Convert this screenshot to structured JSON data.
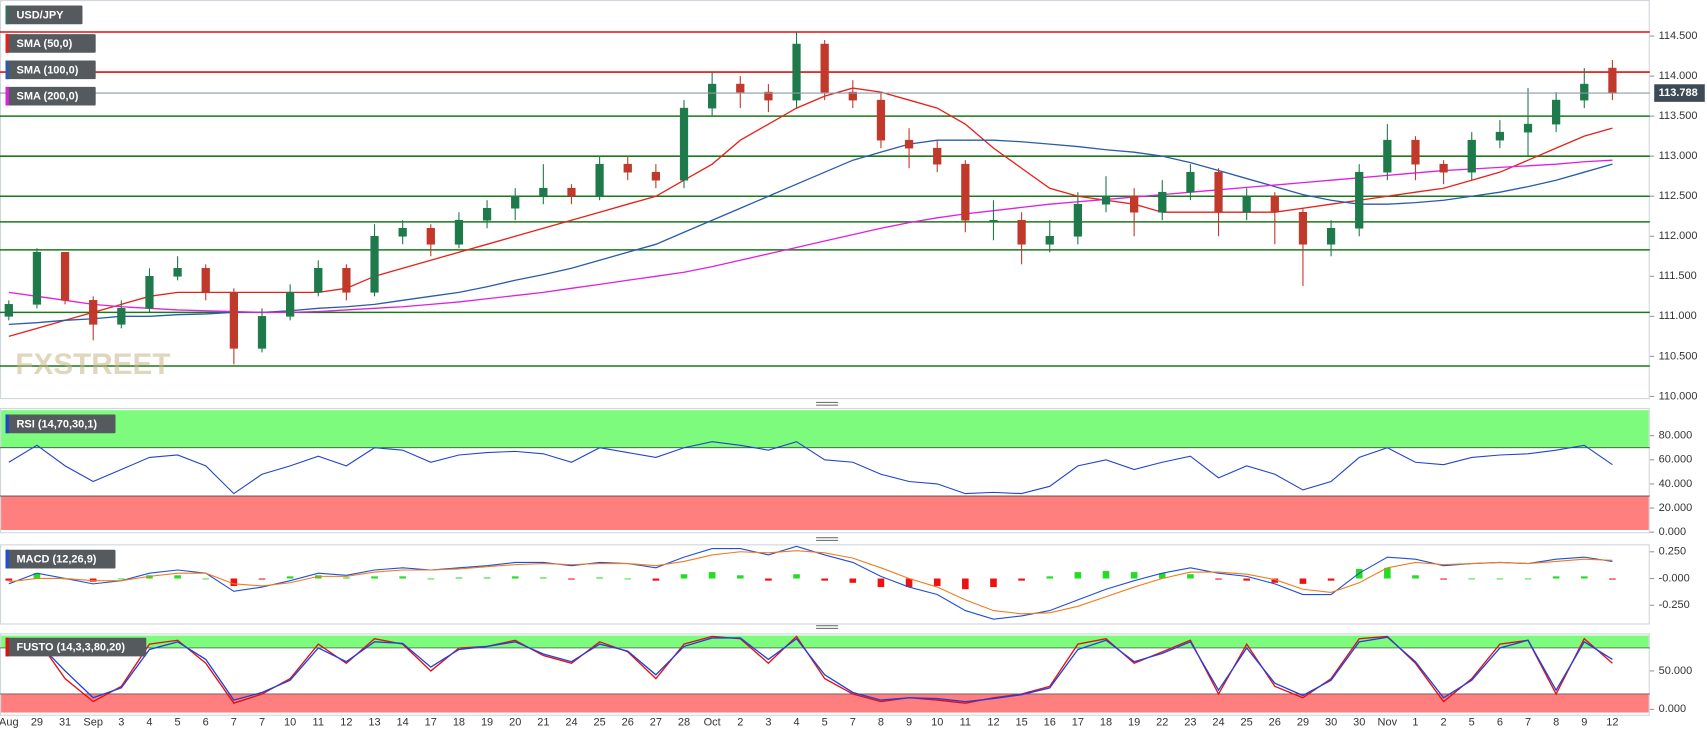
{
  "chart_data": [
    {
      "type": "candlestick",
      "categories": [
        "Aug",
        "29",
        "31",
        "Sep",
        "3",
        "4",
        "5",
        "6",
        "7",
        "7",
        "10",
        "11",
        "12",
        "13",
        "14",
        "17",
        "18",
        "19",
        "20",
        "21",
        "24",
        "25",
        "26",
        "27",
        "28",
        "Oct",
        "2",
        "3",
        "4",
        "5",
        "7",
        "8",
        "9",
        "10",
        "11",
        "12",
        "15",
        "16",
        "17",
        "18",
        "19",
        "22",
        "23",
        "24",
        "25",
        "26",
        "29",
        "30",
        "30",
        "Nov",
        "1",
        "2",
        "5",
        "6",
        "7",
        "8",
        "9",
        "12"
      ],
      "ohlc": {
        "name": "USD/JPY",
        "color": "#3a6b5a",
        "up_color": "#1e7a4a",
        "down_color": "#c0392b",
        "open": [
          111.0,
          111.15,
          111.8,
          111.2,
          110.9,
          111.1,
          111.5,
          111.6,
          111.3,
          110.6,
          111.0,
          111.3,
          111.6,
          111.3,
          112.0,
          112.1,
          111.9,
          112.2,
          112.35,
          112.5,
          112.6,
          112.5,
          112.9,
          112.8,
          112.7,
          113.6,
          113.9,
          113.8,
          113.7,
          114.4,
          113.8,
          113.7,
          113.2,
          113.1,
          112.9,
          112.2,
          112.2,
          111.9,
          112.0,
          112.4,
          112.5,
          112.3,
          112.55,
          112.8,
          112.3,
          112.5,
          112.3,
          111.9,
          112.1,
          112.8,
          113.2,
          112.9,
          112.8,
          113.2,
          113.3,
          113.4,
          113.7,
          114.1
        ],
        "high": [
          111.2,
          111.85,
          111.8,
          111.25,
          111.2,
          111.6,
          111.75,
          111.65,
          111.35,
          111.1,
          111.4,
          111.7,
          111.65,
          112.15,
          112.2,
          112.15,
          112.3,
          112.45,
          112.6,
          112.9,
          112.65,
          113.0,
          113.0,
          112.9,
          113.7,
          114.05,
          114.0,
          113.9,
          114.55,
          114.45,
          113.95,
          113.8,
          113.35,
          113.2,
          112.95,
          112.45,
          112.3,
          112.2,
          112.55,
          112.75,
          112.6,
          112.7,
          112.9,
          112.85,
          112.6,
          112.55,
          112.35,
          112.2,
          112.9,
          113.4,
          113.25,
          112.95,
          113.3,
          113.45,
          113.85,
          113.8,
          114.1,
          114.2
        ],
        "low": [
          110.95,
          111.1,
          111.15,
          110.7,
          110.85,
          111.05,
          111.45,
          111.2,
          110.4,
          110.55,
          110.95,
          111.25,
          111.2,
          111.25,
          111.9,
          111.75,
          111.85,
          112.1,
          112.2,
          112.4,
          112.4,
          112.45,
          112.7,
          112.6,
          112.6,
          113.5,
          113.6,
          113.55,
          113.6,
          113.7,
          113.6,
          113.1,
          112.85,
          112.8,
          112.05,
          111.95,
          111.65,
          111.8,
          111.9,
          112.3,
          112.0,
          112.2,
          112.45,
          112.0,
          112.2,
          111.9,
          111.38,
          111.75,
          112.0,
          112.7,
          112.7,
          112.65,
          112.7,
          113.1,
          113.0,
          113.3,
          113.6,
          113.7
        ],
        "close": [
          111.15,
          111.8,
          111.2,
          110.9,
          111.1,
          111.5,
          111.6,
          111.3,
          110.6,
          111.0,
          111.3,
          111.6,
          111.3,
          112.0,
          112.1,
          111.9,
          112.2,
          112.35,
          112.5,
          112.6,
          112.5,
          112.9,
          112.8,
          112.7,
          113.6,
          113.9,
          113.8,
          113.7,
          114.4,
          113.8,
          113.7,
          113.2,
          113.1,
          112.9,
          112.2,
          112.2,
          111.9,
          112.0,
          112.4,
          112.5,
          112.3,
          112.55,
          112.8,
          112.3,
          112.5,
          112.3,
          111.9,
          112.1,
          112.8,
          113.2,
          112.9,
          112.8,
          113.2,
          113.3,
          113.4,
          113.7,
          113.9,
          113.79
        ]
      },
      "series": [
        {
          "name": "SMA (50,0)",
          "color": "#e8201a",
          "values": [
            110.75,
            110.85,
            110.95,
            111.05,
            111.15,
            111.25,
            111.3,
            111.3,
            111.3,
            111.3,
            111.3,
            111.3,
            111.35,
            111.5,
            111.6,
            111.7,
            111.8,
            111.9,
            112.0,
            112.1,
            112.2,
            112.3,
            112.4,
            112.5,
            112.7,
            112.9,
            113.2,
            113.4,
            113.6,
            113.75,
            113.85,
            113.8,
            113.7,
            113.6,
            113.4,
            113.1,
            112.85,
            112.6,
            112.5,
            112.45,
            112.4,
            112.3,
            112.3,
            112.3,
            112.3,
            112.3,
            112.35,
            112.4,
            112.45,
            112.5,
            112.55,
            112.6,
            112.7,
            112.8,
            112.95,
            113.1,
            113.25,
            113.35
          ]
        },
        {
          "name": "SMA (100,0)",
          "color": "#2a5caa",
          "values": [
            110.9,
            110.92,
            110.95,
            110.97,
            111.0,
            111.0,
            111.02,
            111.03,
            111.05,
            111.05,
            111.07,
            111.1,
            111.12,
            111.15,
            111.2,
            111.25,
            111.3,
            111.37,
            111.45,
            111.52,
            111.6,
            111.7,
            111.8,
            111.9,
            112.05,
            112.2,
            112.35,
            112.5,
            112.65,
            112.8,
            112.95,
            113.05,
            113.15,
            113.2,
            113.2,
            113.2,
            113.18,
            113.15,
            113.12,
            113.08,
            113.05,
            113.0,
            112.92,
            112.82,
            112.72,
            112.62,
            112.52,
            112.45,
            112.4,
            112.4,
            112.42,
            112.45,
            112.5,
            112.55,
            112.62,
            112.7,
            112.8,
            112.9
          ]
        },
        {
          "name": "SMA (200,0)",
          "color": "#e020e0",
          "values": [
            111.3,
            111.25,
            111.2,
            111.15,
            111.12,
            111.1,
            111.08,
            111.07,
            111.06,
            111.05,
            111.05,
            111.06,
            111.08,
            111.1,
            111.12,
            111.15,
            111.18,
            111.22,
            111.26,
            111.3,
            111.35,
            111.4,
            111.45,
            111.5,
            111.55,
            111.62,
            111.7,
            111.78,
            111.86,
            111.94,
            112.02,
            112.1,
            112.17,
            112.23,
            112.28,
            112.32,
            112.36,
            112.4,
            112.43,
            112.46,
            112.49,
            112.52,
            112.55,
            112.58,
            112.61,
            112.64,
            112.67,
            112.7,
            112.73,
            112.76,
            112.79,
            112.82,
            112.84,
            112.86,
            112.88,
            112.9,
            112.93,
            112.95
          ]
        }
      ],
      "levels": [
        {
          "value": 114.55,
          "color": "#e01010"
        },
        {
          "value": 114.05,
          "color": "#e01010"
        },
        {
          "value": 113.5,
          "color": "#1a7a1a"
        },
        {
          "value": 113.0,
          "color": "#1a7a1a"
        },
        {
          "value": 112.5,
          "color": "#1a7a1a"
        },
        {
          "value": 112.18,
          "color": "#1a7a1a"
        },
        {
          "value": 111.83,
          "color": "#1a7a1a"
        },
        {
          "value": 111.05,
          "color": "#1a7a1a"
        },
        {
          "value": 110.38,
          "color": "#1a7a1a"
        }
      ],
      "last_price": 113.788,
      "watermark": "FXSTREET",
      "ylim": [
        109.98,
        114.95
      ],
      "yticks": [
        {
          "value": 110,
          "label": "110.000"
        },
        {
          "value": 110.5,
          "label": "110.500"
        },
        {
          "value": 111,
          "label": "111.000"
        },
        {
          "value": 111.5,
          "label": "111.500"
        },
        {
          "value": 112,
          "label": "112.000"
        },
        {
          "value": 112.5,
          "label": "112.500"
        },
        {
          "value": 113,
          "label": "113.000"
        },
        {
          "value": 113.5,
          "label": "113.500"
        },
        {
          "value": 114,
          "label": "114.000"
        },
        {
          "value": 114.5,
          "label": "114.500"
        }
      ]
    },
    {
      "type": "rsi",
      "title": "RSI (14,70,30,1)",
      "series": [
        {
          "color": "#2244cc",
          "values": [
            58,
            72,
            55,
            42,
            52,
            62,
            64,
            55,
            32,
            48,
            55,
            63,
            55,
            70,
            68,
            58,
            64,
            66,
            67,
            65,
            58,
            70,
            66,
            62,
            70,
            75,
            72,
            68,
            75,
            60,
            58,
            48,
            42,
            40,
            32,
            33,
            32,
            38,
            55,
            60,
            52,
            58,
            63,
            45,
            55,
            48,
            35,
            42,
            62,
            70,
            58,
            56,
            62,
            64,
            65,
            68,
            72,
            56
          ]
        }
      ],
      "upper_band": 70,
      "lower_band": 30,
      "upper_color": "#7dfb7d",
      "lower_color": "#ff7f7f",
      "ylim": [
        0,
        103
      ],
      "yticks": [
        {
          "value": 0,
          "label": "0.000"
        },
        {
          "value": 20,
          "label": "20.000"
        },
        {
          "value": 40,
          "label": "40.000"
        },
        {
          "value": 60,
          "label": "60.000"
        },
        {
          "value": 80,
          "label": "80.000"
        }
      ]
    },
    {
      "type": "macd",
      "title": "MACD (12,26,9)",
      "series": [
        {
          "color": "#1f4fd8",
          "values": [
            -0.05,
            0.05,
            0.0,
            -0.05,
            -0.02,
            0.05,
            0.08,
            0.05,
            -0.12,
            -0.08,
            -0.02,
            0.05,
            0.03,
            0.08,
            0.1,
            0.08,
            0.1,
            0.12,
            0.15,
            0.15,
            0.12,
            0.15,
            0.14,
            0.1,
            0.2,
            0.28,
            0.28,
            0.22,
            0.3,
            0.22,
            0.15,
            0.02,
            -0.08,
            -0.15,
            -0.3,
            -0.38,
            -0.35,
            -0.3,
            -0.2,
            -0.1,
            -0.02,
            0.05,
            0.1,
            0.05,
            0.02,
            -0.05,
            -0.15,
            -0.15,
            0.05,
            0.2,
            0.18,
            0.12,
            0.14,
            0.15,
            0.14,
            0.18,
            0.2,
            0.16
          ]
        },
        {
          "color": "#f07c1e",
          "values": [
            -0.03,
            0.0,
            0.0,
            -0.02,
            -0.02,
            0.02,
            0.05,
            0.05,
            -0.05,
            -0.07,
            -0.04,
            0.02,
            0.02,
            0.06,
            0.08,
            0.08,
            0.09,
            0.11,
            0.13,
            0.14,
            0.13,
            0.14,
            0.14,
            0.12,
            0.16,
            0.22,
            0.25,
            0.24,
            0.26,
            0.24,
            0.19,
            0.1,
            0.0,
            -0.08,
            -0.2,
            -0.3,
            -0.33,
            -0.32,
            -0.26,
            -0.17,
            -0.08,
            0.0,
            0.06,
            0.06,
            0.04,
            -0.01,
            -0.1,
            -0.13,
            -0.04,
            0.1,
            0.15,
            0.13,
            0.14,
            0.15,
            0.14,
            0.16,
            0.18,
            0.17
          ]
        }
      ],
      "histogram": [
        -0.02,
        0.05,
        0.0,
        -0.03,
        0.0,
        0.03,
        0.03,
        0.0,
        -0.07,
        -0.01,
        0.02,
        0.03,
        0.01,
        0.02,
        0.02,
        0.0,
        0.01,
        0.01,
        0.02,
        0.01,
        -0.01,
        0.01,
        0.0,
        -0.02,
        0.04,
        0.06,
        0.03,
        -0.02,
        0.04,
        -0.02,
        -0.04,
        -0.08,
        -0.08,
        -0.07,
        -0.1,
        -0.08,
        -0.02,
        0.02,
        0.06,
        0.07,
        0.06,
        0.05,
        0.04,
        -0.01,
        -0.02,
        -0.04,
        -0.05,
        -0.02,
        0.09,
        0.1,
        0.03,
        -0.01,
        0.0,
        0.0,
        0.0,
        0.02,
        0.02,
        -0.01
      ],
      "up_color": "#22dd22",
      "down_color": "#ee1111",
      "ylim": [
        -0.42,
        0.32
      ],
      "yticks": [
        {
          "value": 0.25,
          "label": "0.250"
        },
        {
          "value": 0,
          "label": "-0.000"
        },
        {
          "value": -0.25,
          "label": "-0.250"
        }
      ]
    },
    {
      "type": "stochastic",
      "title": "FUSTO (14,3,3,80,20)",
      "series": [
        {
          "color": "#e01010",
          "values": [
            70,
            92,
            40,
            10,
            30,
            85,
            90,
            60,
            8,
            20,
            40,
            85,
            60,
            92,
            85,
            50,
            80,
            82,
            90,
            70,
            60,
            88,
            75,
            40,
            85,
            95,
            92,
            60,
            95,
            40,
            20,
            10,
            15,
            12,
            8,
            15,
            20,
            30,
            85,
            92,
            60,
            75,
            90,
            20,
            85,
            30,
            15,
            40,
            92,
            95,
            60,
            10,
            40,
            85,
            90,
            20,
            92,
            60
          ]
        },
        {
          "color": "#2040e0",
          "values": [
            75,
            88,
            50,
            15,
            28,
            78,
            88,
            65,
            12,
            22,
            38,
            80,
            62,
            88,
            86,
            55,
            78,
            82,
            88,
            72,
            62,
            85,
            76,
            45,
            82,
            93,
            93,
            65,
            92,
            45,
            22,
            12,
            15,
            14,
            10,
            14,
            19,
            28,
            78,
            90,
            62,
            73,
            88,
            25,
            80,
            34,
            18,
            38,
            88,
            94,
            62,
            15,
            38,
            80,
            90,
            25,
            88,
            65
          ]
        }
      ],
      "upper_band": 80,
      "lower_band": 20,
      "upper_color": "#7dfb7d",
      "lower_color": "#ff7f7f",
      "ylim": [
        -7,
        99
      ],
      "yticks": [
        {
          "value": 0,
          "label": "0.000"
        },
        {
          "value": 50,
          "label": "50.000"
        }
      ]
    }
  ]
}
